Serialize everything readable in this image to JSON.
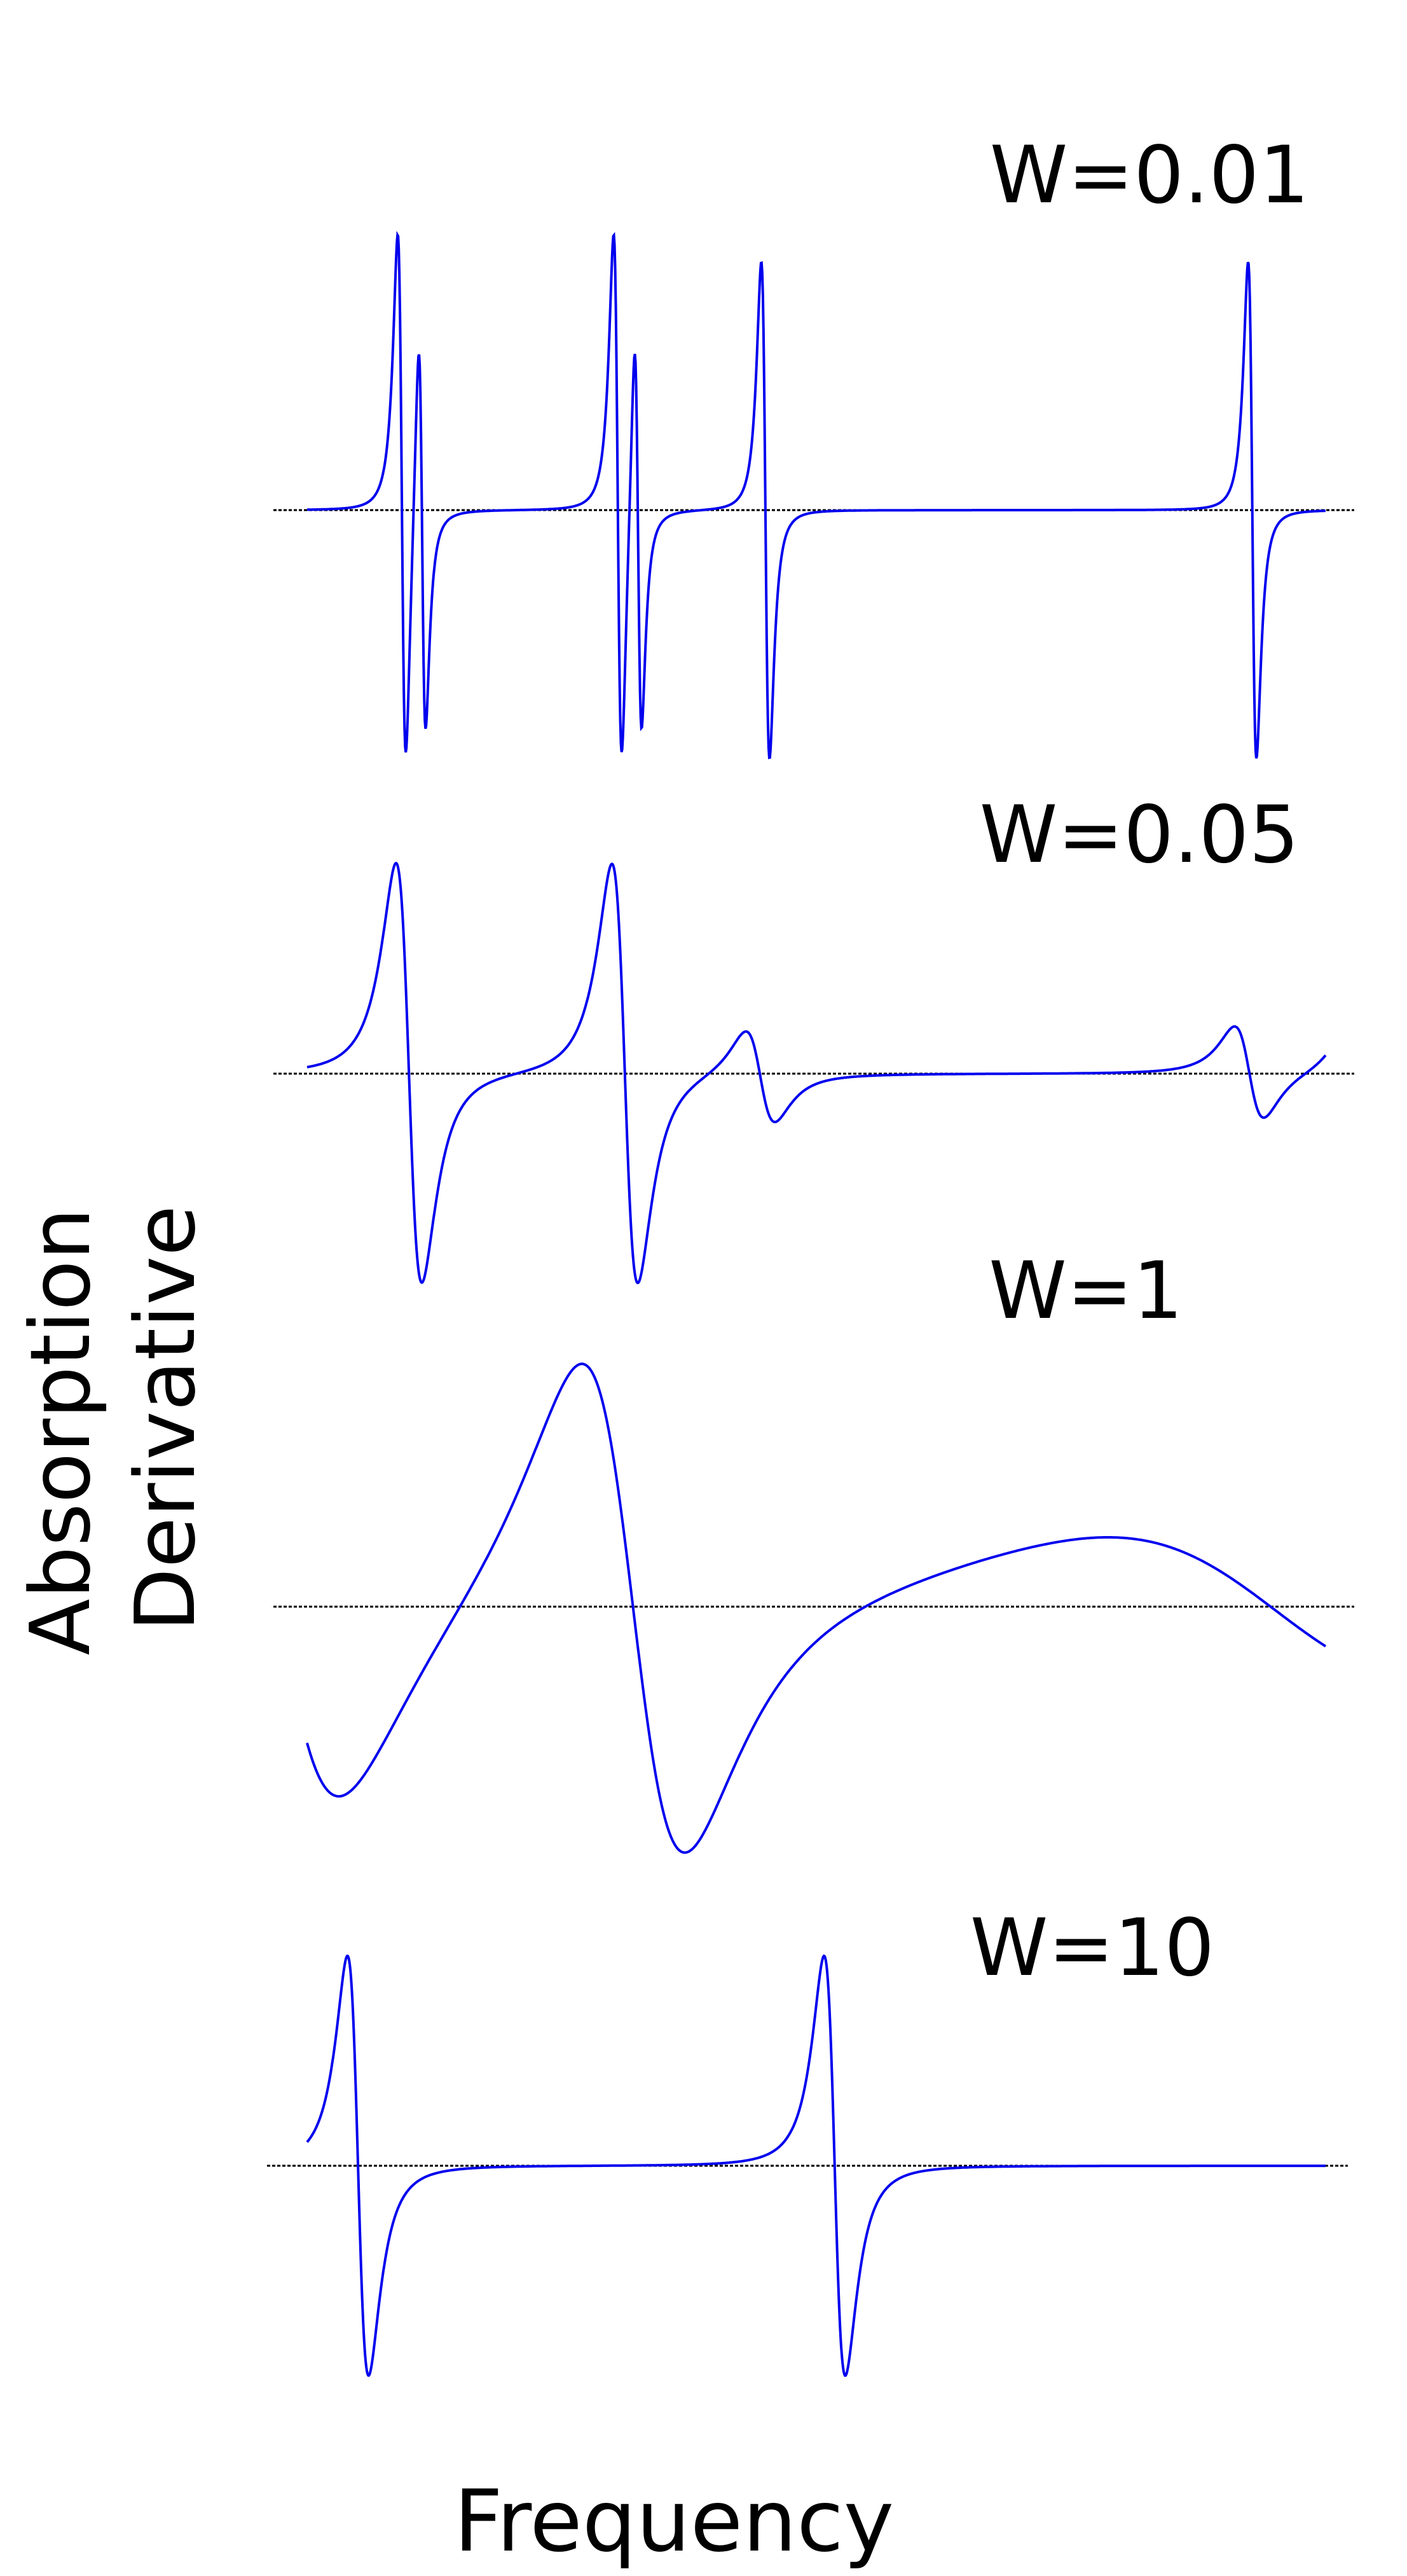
{
  "chart_data": {
    "type": "line",
    "x_label": "Frequency",
    "y_label_lines": [
      "Absorption",
      "Derivative"
    ],
    "colors": {
      "trace": "#0000ee",
      "baseline": "#000000"
    },
    "x_domain": [
      0,
      1
    ],
    "panels": [
      {
        "label": "W=0.01",
        "ylim": [
          -1.05,
          1.05
        ],
        "peaks": [
          {
            "x": 0.093,
            "amp": 1.0,
            "width": 0.007
          },
          {
            "x": 0.113,
            "amp": 0.75,
            "width": 0.006
          },
          {
            "x": 0.305,
            "amp": 1.0,
            "width": 0.007
          },
          {
            "x": 0.325,
            "amp": 0.75,
            "width": 0.006
          },
          {
            "x": 0.45,
            "amp": 0.93,
            "width": 0.007
          },
          {
            "x": 0.928,
            "amp": 0.93,
            "width": 0.007
          }
        ]
      },
      {
        "label": "W=0.05",
        "ylim": [
          -1.05,
          1.05
        ],
        "peaks": [
          {
            "x": 0.1,
            "amp": 1.0,
            "width": 0.022
          },
          {
            "x": 0.312,
            "amp": 1.0,
            "width": 0.022
          },
          {
            "x": 0.445,
            "amp": 0.22,
            "width": 0.025
          },
          {
            "x": 0.925,
            "amp": 0.22,
            "width": 0.025
          },
          {
            "x": 1.035,
            "amp": 0.22,
            "width": 0.025
          }
        ]
      },
      {
        "label": "W=1",
        "ylim": [
          -1.05,
          1.05
        ],
        "peaks": [
          {
            "x": -0.03,
            "amp": 0.85,
            "width": 0.11
          },
          {
            "x": 0.32,
            "amp": 1.0,
            "width": 0.09
          },
          {
            "x": 0.95,
            "amp": 0.3,
            "width": 0.3
          }
        ]
      },
      {
        "label": "W=10",
        "ylim": [
          -1.05,
          1.05
        ],
        "peaks": [
          {
            "x": 0.05,
            "amp": 1.0,
            "width": 0.018
          },
          {
            "x": 0.518,
            "amp": 1.0,
            "width": 0.018
          }
        ]
      }
    ]
  }
}
